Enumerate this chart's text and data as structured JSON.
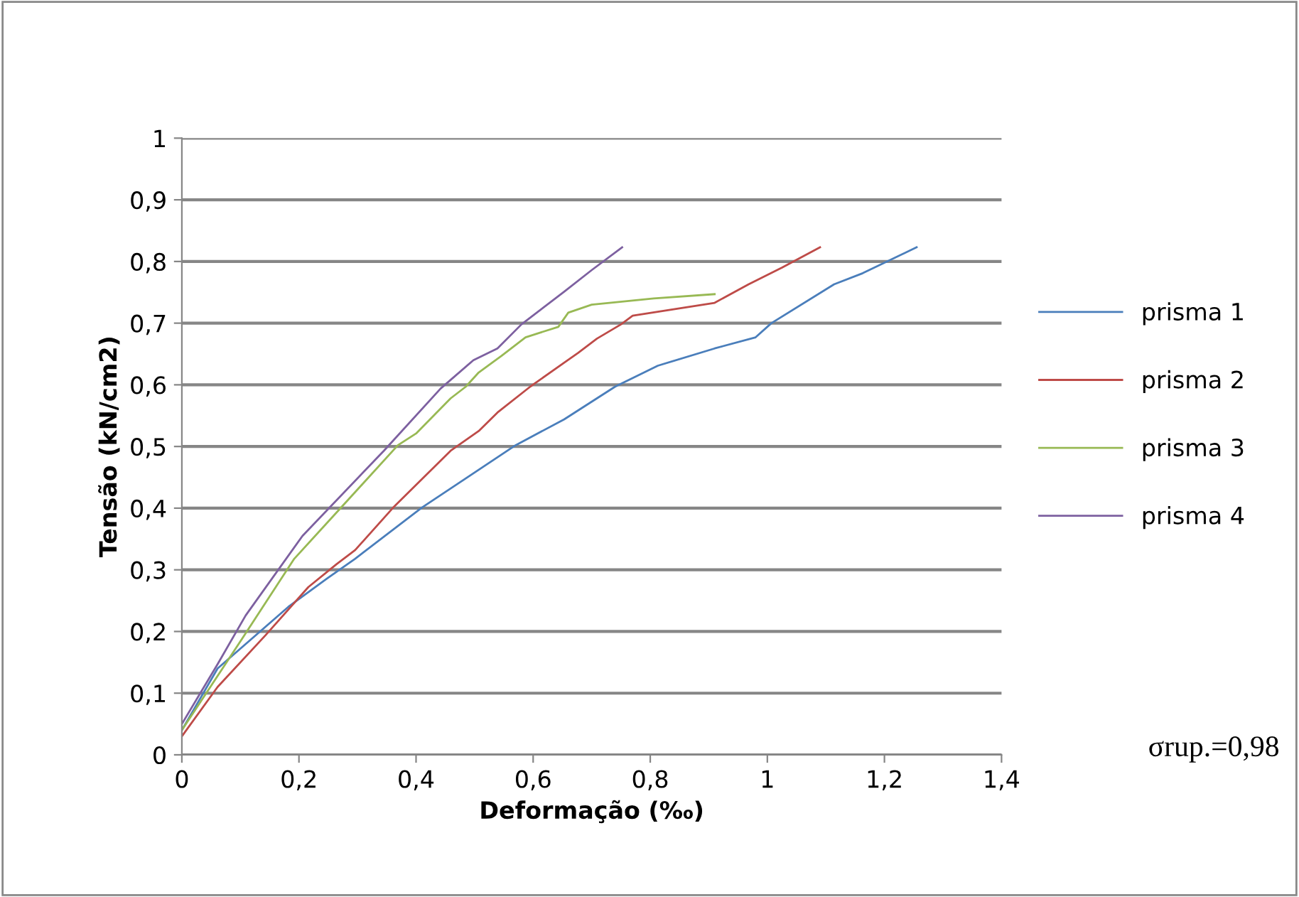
{
  "chart_data": {
    "type": "line",
    "xlabel": "Deformação (‰)",
    "ylabel": "Tensão (kN/cm2)",
    "xlim": [
      0,
      1.4
    ],
    "xticks": [
      0,
      {
        "value": 0.2,
        "label": "0,2"
      },
      {
        "value": 0.4,
        "label": "0,4"
      },
      {
        "value": 0.6,
        "label": "0,6"
      },
      {
        "value": 0.8,
        "label": "0,8"
      },
      1,
      {
        "value": 1.2,
        "label": "1,2"
      },
      {
        "value": 1.4,
        "label": "1,4"
      }
    ],
    "ylim": [
      0,
      1
    ],
    "yticks": [
      0,
      {
        "value": 0.1,
        "label": "0,1"
      },
      {
        "value": 0.2,
        "label": "0,2"
      },
      {
        "value": 0.3,
        "label": "0,3"
      },
      {
        "value": 0.4,
        "label": "0,4"
      },
      {
        "value": 0.5,
        "label": "0,5"
      },
      {
        "value": 0.6,
        "label": "0,6"
      },
      {
        "value": 0.7,
        "label": "0,7"
      },
      {
        "value": 0.8,
        "label": "0,8"
      },
      {
        "value": 0.9,
        "label": "0,9"
      },
      1
    ],
    "grid": "y",
    "legend": "right",
    "marker": "none",
    "line_style": "solid",
    "annotations": [
      "σrup.=0,98"
    ],
    "series": [
      {
        "name": "prisma 1",
        "color": "#4a7ebb",
        "x": [
          0,
          0.061,
          0.182,
          0.248,
          0.296,
          0.41,
          0.483,
          0.57,
          0.653,
          0.74,
          0.813,
          0.91,
          0.98,
          1.007,
          1.114,
          1.163,
          1.255
        ],
        "values": [
          0.04,
          0.14,
          0.24,
          0.286,
          0.318,
          0.401,
          0.447,
          0.502,
          0.544,
          0.597,
          0.631,
          0.659,
          0.677,
          0.7,
          0.763,
          0.781,
          0.823
        ]
      },
      {
        "name": "prisma 2",
        "color": "#be4b48",
        "x": [
          0,
          0.061,
          0.143,
          0.216,
          0.264,
          0.296,
          0.361,
          0.459,
          0.507,
          0.539,
          0.595,
          0.677,
          0.709,
          0.75,
          0.77,
          0.91,
          0.968,
          1.025,
          1.09
        ],
        "values": [
          0.03,
          0.11,
          0.194,
          0.272,
          0.309,
          0.332,
          0.401,
          0.493,
          0.525,
          0.555,
          0.597,
          0.652,
          0.675,
          0.698,
          0.712,
          0.733,
          0.763,
          0.79,
          0.823
        ]
      },
      {
        "name": "prisma 3",
        "color": "#98b954",
        "x": [
          0,
          0.102,
          0.192,
          0.272,
          0.369,
          0.4,
          0.459,
          0.485,
          0.507,
          0.546,
          0.587,
          0.643,
          0.66,
          0.7,
          0.806,
          0.91
        ],
        "values": [
          0.04,
          0.187,
          0.318,
          0.401,
          0.502,
          0.521,
          0.578,
          0.597,
          0.62,
          0.647,
          0.677,
          0.694,
          0.717,
          0.73,
          0.74,
          0.747
        ]
      },
      {
        "name": "prisma 4",
        "color": "#7d60a0",
        "x": [
          0,
          0.061,
          0.109,
          0.206,
          0.345,
          0.442,
          0.498,
          0.539,
          0.58,
          0.653,
          0.7,
          0.752
        ],
        "values": [
          0.05,
          0.147,
          0.226,
          0.355,
          0.493,
          0.594,
          0.64,
          0.659,
          0.698,
          0.751,
          0.786,
          0.823
        ]
      }
    ]
  }
}
